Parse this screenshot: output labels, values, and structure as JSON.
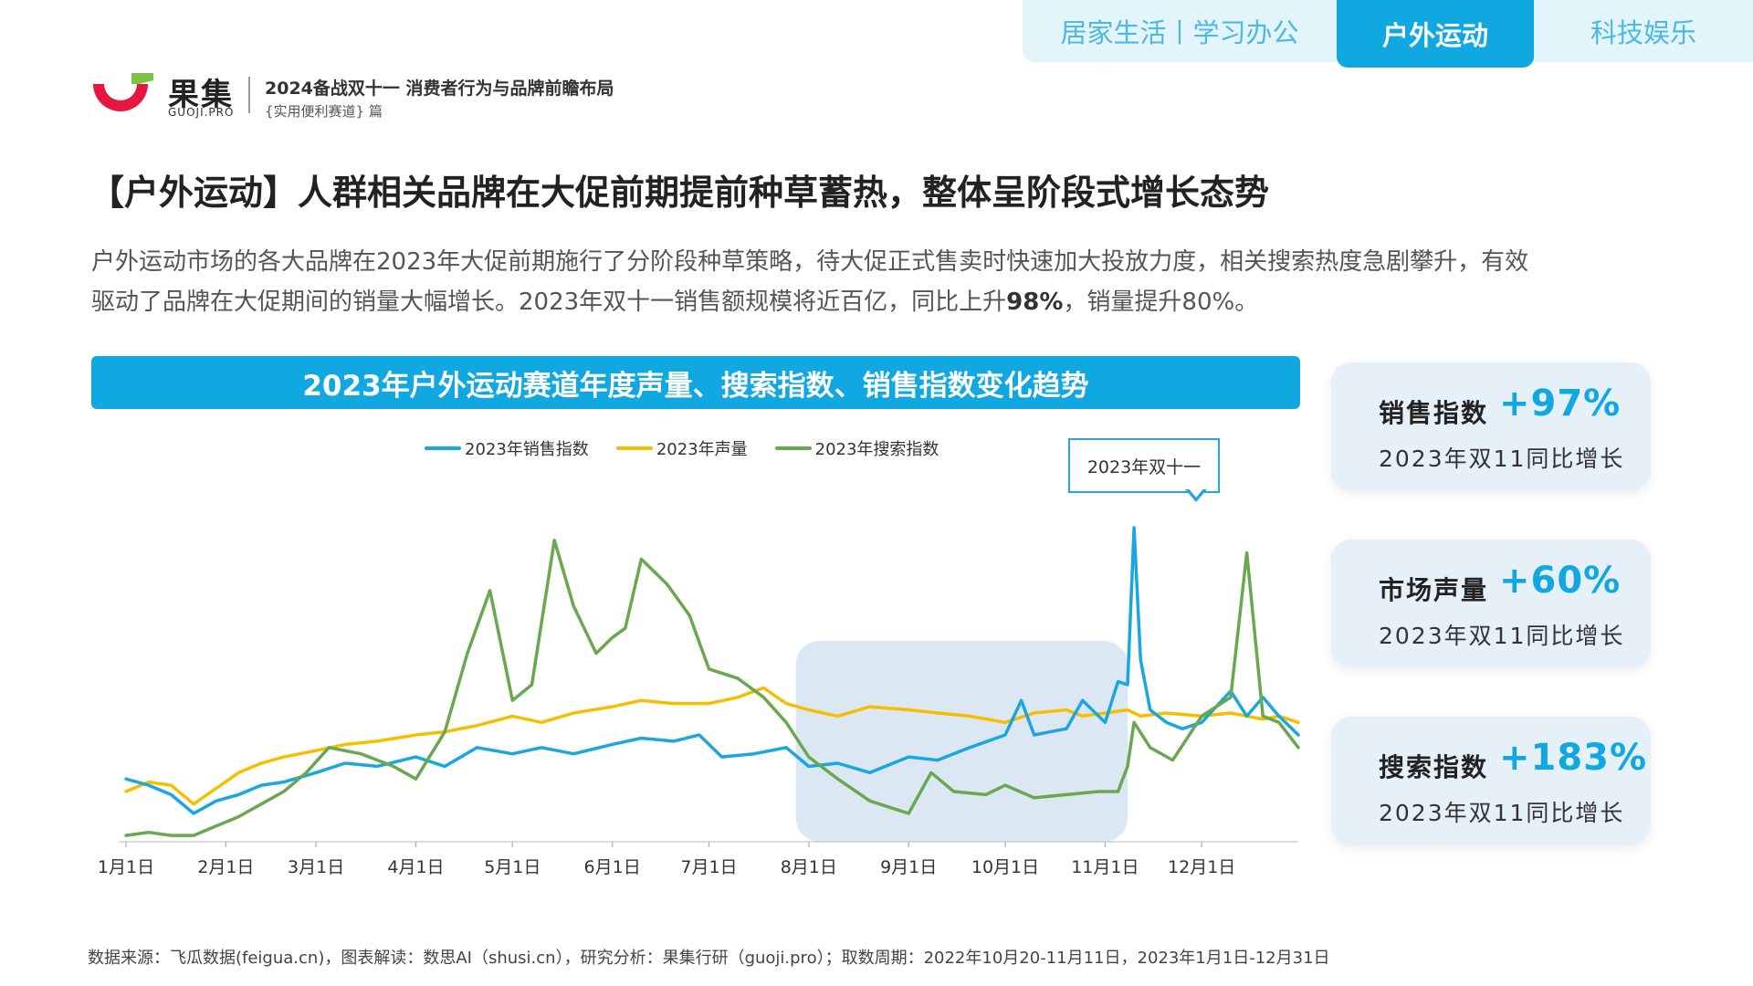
{
  "nav": {
    "tabs": [
      {
        "label": "居家生活丨学习办公",
        "active": false
      },
      {
        "label": "户外运动",
        "active": true
      },
      {
        "label": "科技娱乐",
        "active": false
      }
    ]
  },
  "brand": {
    "name": "果集",
    "domain": "GUOJI.PRO",
    "report_title": "2024备战双十一 消费者行为与品牌前瞻布局",
    "report_subtitle": "{实用便利赛道} 篇"
  },
  "headline": "【户外运动】人群相关品牌在大促前期提前种草蓄热，整体呈阶段式增长态势",
  "body": {
    "line1": "户外运动市场的各大品牌在2023年大促前期施行了分阶段种草策略，待大促正式售卖时快速加大投放力度，相关搜索热度急剧攀升，有效",
    "line2_a": "驱动了品牌在大促期间的销量大幅增长。2023年双十一销售额规模将近百亿，同比上升",
    "line2_bold": "98%",
    "line2_b": "，销量提升80%。"
  },
  "chart_banner": "2023年户外运动赛道年度声量、搜索指数、销售指数变化趋势",
  "callout": "2023年双十一",
  "kpis": [
    {
      "label": "销售指数",
      "value": "+97%",
      "note": "2023年双11同比增长"
    },
    {
      "label": "市场声量",
      "value": "+60%",
      "note": "2023年双11同比增长"
    },
    {
      "label": "搜索指数",
      "value": "+183%",
      "note": "2023年双11同比增长"
    }
  ],
  "footnote": "数据来源：飞瓜数据(feigua.cn)，图表解读：数思AI（shusi.cn），研究分析：果集行研（guoji.pro）；取数周期：2022年10月20-11月11日，2023年1月1日-12月31日",
  "colors": {
    "accent": "#11a8e2",
    "sales": "#1aa6e0",
    "volume": "#f6be00",
    "search": "#6aa84f",
    "highlight": "#dbe7f3"
  },
  "chart_data": {
    "type": "line",
    "title": "2023年户外运动赛道年度声量、搜索指数、销售指数变化趋势",
    "x_ticks": [
      "1月1日",
      "2月1日",
      "3月1日",
      "4月1日",
      "5月1日",
      "6月1日",
      "7月1日",
      "8月1日",
      "9月1日",
      "10月1日",
      "11月1日",
      "12月1日"
    ],
    "x_range": [
      "2023-01-01",
      "2023-12-31"
    ],
    "y_range": [
      0,
      100
    ],
    "grid": false,
    "legend_position": "top",
    "highlight_range": [
      "2023-07-28",
      "2023-11-08"
    ],
    "series": [
      {
        "name": "2023年销售指数",
        "color": "#1aa6e0",
        "points": [
          [
            "01-01",
            20
          ],
          [
            "01-08",
            18
          ],
          [
            "01-15",
            15
          ],
          [
            "01-22",
            9
          ],
          [
            "01-29",
            13
          ],
          [
            "02-05",
            15
          ],
          [
            "02-12",
            18
          ],
          [
            "02-19",
            19
          ],
          [
            "03-01",
            22
          ],
          [
            "03-10",
            25
          ],
          [
            "03-20",
            24
          ],
          [
            "04-01",
            27
          ],
          [
            "04-10",
            24
          ],
          [
            "04-20",
            30
          ],
          [
            "05-01",
            28
          ],
          [
            "05-10",
            30
          ],
          [
            "05-20",
            28
          ],
          [
            "06-01",
            31
          ],
          [
            "06-10",
            33
          ],
          [
            "06-20",
            32
          ],
          [
            "06-28",
            34
          ],
          [
            "07-05",
            27
          ],
          [
            "07-15",
            28
          ],
          [
            "07-25",
            30
          ],
          [
            "08-01",
            24
          ],
          [
            "08-10",
            25
          ],
          [
            "08-20",
            22
          ],
          [
            "09-01",
            27
          ],
          [
            "09-10",
            26
          ],
          [
            "09-20",
            30
          ],
          [
            "10-01",
            34
          ],
          [
            "10-06",
            45
          ],
          [
            "10-10",
            34
          ],
          [
            "10-20",
            36
          ],
          [
            "10-25",
            45
          ],
          [
            "11-01",
            38
          ],
          [
            "11-05",
            51
          ],
          [
            "11-08",
            50
          ],
          [
            "11-10",
            100
          ],
          [
            "11-12",
            58
          ],
          [
            "11-15",
            42
          ],
          [
            "11-20",
            38
          ],
          [
            "11-25",
            36
          ],
          [
            "12-01",
            38
          ],
          [
            "12-10",
            48
          ],
          [
            "12-15",
            40
          ],
          [
            "12-20",
            46
          ],
          [
            "12-25",
            40
          ],
          [
            "12-31",
            34
          ]
        ]
      },
      {
        "name": "2023年声量",
        "color": "#f6be00",
        "points": [
          [
            "01-01",
            16
          ],
          [
            "01-08",
            19
          ],
          [
            "01-15",
            18
          ],
          [
            "01-22",
            12
          ],
          [
            "01-29",
            17
          ],
          [
            "02-05",
            22
          ],
          [
            "02-12",
            25
          ],
          [
            "02-19",
            27
          ],
          [
            "03-01",
            29
          ],
          [
            "03-10",
            31
          ],
          [
            "03-20",
            32
          ],
          [
            "04-01",
            34
          ],
          [
            "04-10",
            35
          ],
          [
            "04-20",
            37
          ],
          [
            "05-01",
            40
          ],
          [
            "05-10",
            38
          ],
          [
            "05-20",
            41
          ],
          [
            "06-01",
            43
          ],
          [
            "06-10",
            45
          ],
          [
            "06-20",
            44
          ],
          [
            "07-01",
            44
          ],
          [
            "07-10",
            46
          ],
          [
            "07-18",
            49
          ],
          [
            "07-25",
            44
          ],
          [
            "08-01",
            42
          ],
          [
            "08-10",
            40
          ],
          [
            "08-20",
            43
          ],
          [
            "09-01",
            42
          ],
          [
            "09-10",
            41
          ],
          [
            "09-20",
            40
          ],
          [
            "10-01",
            38
          ],
          [
            "10-10",
            41
          ],
          [
            "10-20",
            42
          ],
          [
            "10-25",
            40
          ],
          [
            "11-01",
            41
          ],
          [
            "11-08",
            42
          ],
          [
            "11-12",
            40
          ],
          [
            "11-20",
            41
          ],
          [
            "12-01",
            40
          ],
          [
            "12-10",
            41
          ],
          [
            "12-20",
            39
          ],
          [
            "12-25",
            40
          ],
          [
            "12-31",
            38
          ]
        ]
      },
      {
        "name": "2023年搜索指数",
        "color": "#6aa84f",
        "points": [
          [
            "01-01",
            2
          ],
          [
            "01-08",
            3
          ],
          [
            "01-15",
            2
          ],
          [
            "01-22",
            2
          ],
          [
            "01-29",
            5
          ],
          [
            "02-05",
            8
          ],
          [
            "02-12",
            12
          ],
          [
            "02-19",
            16
          ],
          [
            "02-26",
            22
          ],
          [
            "03-05",
            30
          ],
          [
            "03-15",
            28
          ],
          [
            "03-25",
            24
          ],
          [
            "04-01",
            20
          ],
          [
            "04-10",
            35
          ],
          [
            "04-17",
            60
          ],
          [
            "04-24",
            80
          ],
          [
            "05-01",
            45
          ],
          [
            "05-07",
            50
          ],
          [
            "05-14",
            96
          ],
          [
            "05-20",
            75
          ],
          [
            "05-27",
            60
          ],
          [
            "06-01",
            65
          ],
          [
            "06-05",
            68
          ],
          [
            "06-10",
            90
          ],
          [
            "06-18",
            82
          ],
          [
            "06-25",
            72
          ],
          [
            "07-01",
            55
          ],
          [
            "07-10",
            52
          ],
          [
            "07-18",
            46
          ],
          [
            "07-25",
            38
          ],
          [
            "08-01",
            27
          ],
          [
            "08-10",
            20
          ],
          [
            "08-20",
            13
          ],
          [
            "09-01",
            9
          ],
          [
            "09-08",
            22
          ],
          [
            "09-15",
            16
          ],
          [
            "09-25",
            15
          ],
          [
            "10-01",
            18
          ],
          [
            "10-10",
            14
          ],
          [
            "10-20",
            15
          ],
          [
            "10-30",
            16
          ],
          [
            "11-05",
            16
          ],
          [
            "11-08",
            24
          ],
          [
            "11-10",
            38
          ],
          [
            "11-15",
            30
          ],
          [
            "11-22",
            26
          ],
          [
            "12-01",
            40
          ],
          [
            "12-10",
            46
          ],
          [
            "12-15",
            92
          ],
          [
            "12-20",
            40
          ],
          [
            "12-25",
            38
          ],
          [
            "12-31",
            30
          ]
        ]
      }
    ]
  }
}
